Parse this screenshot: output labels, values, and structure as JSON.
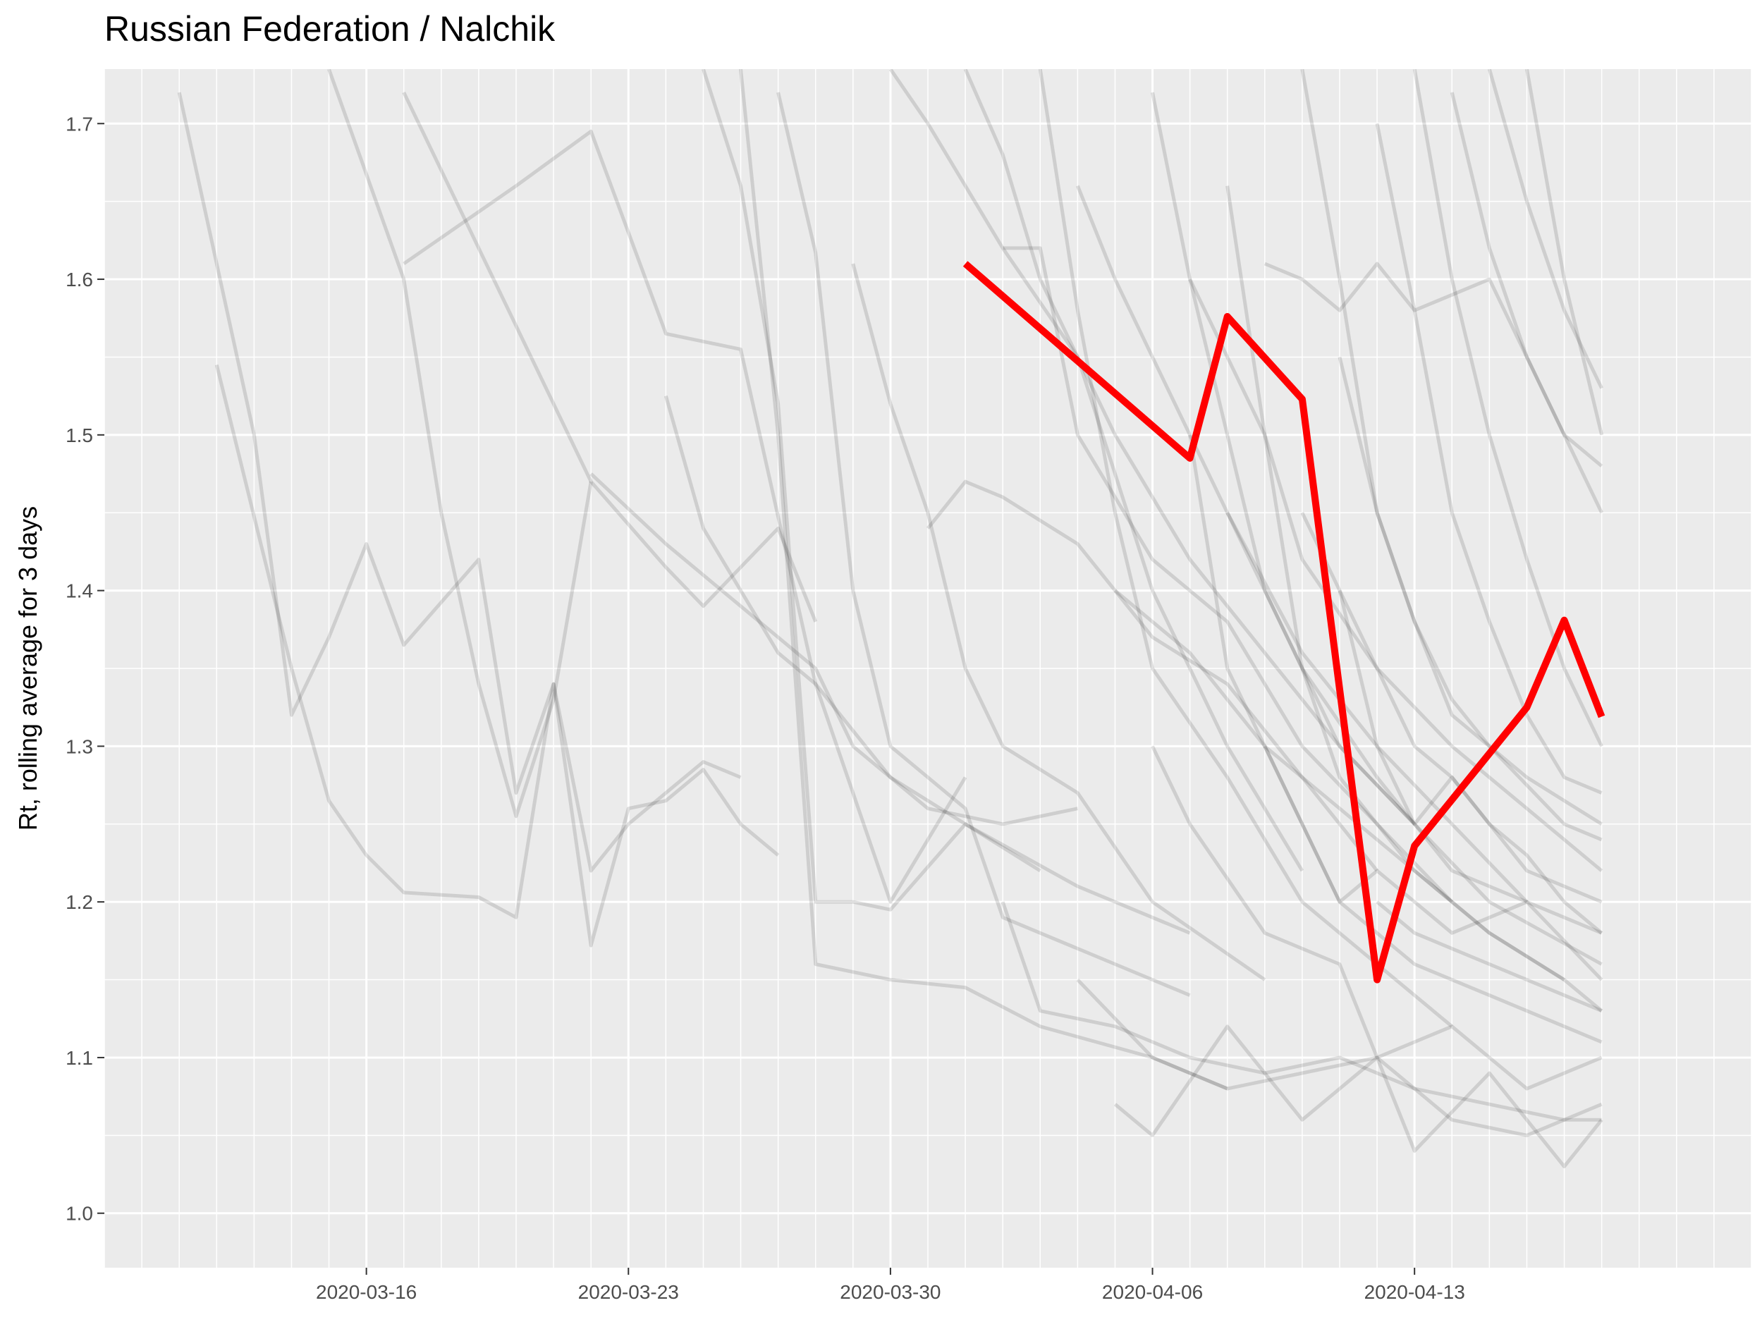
{
  "chart_data": {
    "type": "line",
    "title": "Russian Federation / Nalchik",
    "xlabel": "",
    "ylabel": "Rt, rolling average for 3 days",
    "xlim": [
      "2020-03-09",
      "2020-04-22"
    ],
    "ylim": [
      0.965,
      1.735
    ],
    "x_ticks": [
      "2020-03-16",
      "2020-03-23",
      "2020-03-30",
      "2020-04-06",
      "2020-04-13"
    ],
    "y_ticks": [
      "1.0",
      "1.1",
      "1.2",
      "1.3",
      "1.4",
      "1.5",
      "1.6",
      "1.7"
    ],
    "grid": true,
    "highlight_color": "#ff0000",
    "background_color": "#ebebeb",
    "highlight_series": {
      "name": "Nalchik",
      "x": [
        "2020-04-01",
        "2020-04-07",
        "2020-04-08",
        "2020-04-10",
        "2020-04-12",
        "2020-04-13",
        "2020-04-16",
        "2020-04-17",
        "2020-04-18"
      ],
      "y": [
        1.61,
        1.485,
        1.576,
        1.523,
        1.15,
        1.236,
        1.325,
        1.381,
        1.319
      ]
    },
    "background_series": [
      {
        "x": [
          "2020-03-11",
          "2020-03-13",
          "2020-03-14",
          "2020-03-15",
          "2020-03-16",
          "2020-03-17",
          "2020-03-19",
          "2020-03-20",
          "2020-03-21",
          "2020-03-22",
          "2020-03-23",
          "2020-03-24",
          "2020-03-25",
          "2020-03-26"
        ],
        "y": [
          1.72,
          1.5,
          1.32,
          1.37,
          1.43,
          1.365,
          1.42,
          1.27,
          1.34,
          1.22,
          1.25,
          1.27,
          1.29,
          1.28
        ]
      },
      {
        "x": [
          "2020-03-12",
          "2020-03-14",
          "2020-03-15",
          "2020-03-16",
          "2020-03-17",
          "2020-03-19",
          "2020-03-20",
          "2020-03-21",
          "2020-03-22",
          "2020-03-23",
          "2020-03-24",
          "2020-03-25",
          "2020-03-26",
          "2020-03-27"
        ],
        "y": [
          1.545,
          1.35,
          1.265,
          1.23,
          1.206,
          1.203,
          1.19,
          1.34,
          1.172,
          1.26,
          1.265,
          1.285,
          1.25,
          1.23
        ]
      },
      {
        "x": [
          "2020-03-15",
          "2020-03-17",
          "2020-03-18",
          "2020-03-19",
          "2020-03-20",
          "2020-03-21",
          "2020-03-22"
        ],
        "y": [
          1.735,
          1.6,
          1.45,
          1.34,
          1.255,
          1.33,
          1.47
        ]
      },
      {
        "x": [
          "2020-03-17",
          "2020-03-19",
          "2020-03-21",
          "2020-03-22",
          "2020-03-24",
          "2020-03-25",
          "2020-03-27",
          "2020-03-28"
        ],
        "y": [
          1.72,
          1.62,
          1.52,
          1.47,
          1.415,
          1.39,
          1.44,
          1.38
        ]
      },
      {
        "x": [
          "2020-03-17",
          "2020-03-20",
          "2020-03-22",
          "2020-03-24",
          "2020-03-26",
          "2020-03-28",
          "2020-03-30",
          "2020-04-01"
        ],
        "y": [
          1.61,
          1.66,
          1.695,
          1.565,
          1.555,
          1.34,
          1.2,
          1.28
        ]
      },
      {
        "x": [
          "2020-03-22",
          "2020-03-24",
          "2020-03-26",
          "2020-03-28",
          "2020-03-29",
          "2020-03-31",
          "2020-04-02",
          "2020-04-04"
        ],
        "y": [
          1.475,
          1.43,
          1.39,
          1.35,
          1.3,
          1.26,
          1.25,
          1.26
        ]
      },
      {
        "x": [
          "2020-03-24",
          "2020-03-25",
          "2020-03-27",
          "2020-03-28",
          "2020-03-30",
          "2020-04-01",
          "2020-04-04",
          "2020-04-07"
        ],
        "y": [
          1.525,
          1.44,
          1.36,
          1.34,
          1.28,
          1.25,
          1.21,
          1.18
        ]
      },
      {
        "x": [
          "2020-03-25",
          "2020-03-26",
          "2020-03-27",
          "2020-03-28",
          "2020-03-29",
          "2020-03-30",
          "2020-04-01",
          "2020-04-03"
        ],
        "y": [
          1.735,
          1.66,
          1.52,
          1.2,
          1.2,
          1.195,
          1.25,
          1.22
        ]
      },
      {
        "x": [
          "2020-03-26",
          "2020-03-27",
          "2020-03-28",
          "2020-03-30",
          "2020-04-01",
          "2020-04-03",
          "2020-04-06",
          "2020-04-08"
        ],
        "y": [
          1.735,
          1.5,
          1.16,
          1.15,
          1.145,
          1.12,
          1.1,
          1.08
        ]
      },
      {
        "x": [
          "2020-03-27",
          "2020-03-28",
          "2020-03-29",
          "2020-03-30",
          "2020-04-01",
          "2020-04-02",
          "2020-04-05",
          "2020-04-07"
        ],
        "y": [
          1.72,
          1.617,
          1.4,
          1.3,
          1.26,
          1.19,
          1.16,
          1.14
        ]
      },
      {
        "x": [
          "2020-03-29",
          "2020-03-30",
          "2020-03-31",
          "2020-04-01",
          "2020-04-02",
          "2020-04-04",
          "2020-04-06",
          "2020-04-09"
        ],
        "y": [
          1.61,
          1.52,
          1.45,
          1.35,
          1.3,
          1.27,
          1.2,
          1.15
        ]
      },
      {
        "x": [
          "2020-03-30",
          "2020-03-31",
          "2020-04-01",
          "2020-04-02",
          "2020-04-04",
          "2020-04-06",
          "2020-04-08",
          "2020-04-10"
        ],
        "y": [
          1.735,
          1.7,
          1.66,
          1.62,
          1.55,
          1.4,
          1.3,
          1.22
        ]
      },
      {
        "x": [
          "2020-03-31",
          "2020-04-01",
          "2020-04-02",
          "2020-04-04",
          "2020-04-06",
          "2020-04-08",
          "2020-04-10",
          "2020-04-12"
        ],
        "y": [
          1.44,
          1.47,
          1.46,
          1.43,
          1.37,
          1.34,
          1.28,
          1.22
        ]
      },
      {
        "x": [
          "2020-04-01",
          "2020-04-02",
          "2020-04-03",
          "2020-04-05",
          "2020-04-07",
          "2020-04-09",
          "2020-04-11",
          "2020-04-13"
        ],
        "y": [
          1.735,
          1.68,
          1.6,
          1.5,
          1.42,
          1.36,
          1.3,
          1.25
        ]
      },
      {
        "x": [
          "2020-04-02",
          "2020-04-03",
          "2020-04-04",
          "2020-04-06",
          "2020-04-08",
          "2020-04-10",
          "2020-04-12",
          "2020-04-14"
        ],
        "y": [
          1.62,
          1.62,
          1.5,
          1.42,
          1.38,
          1.3,
          1.25,
          1.2
        ]
      },
      {
        "x": [
          "2020-04-03",
          "2020-04-04",
          "2020-04-05",
          "2020-04-06",
          "2020-04-08",
          "2020-04-10",
          "2020-04-12",
          "2020-04-14"
        ],
        "y": [
          1.735,
          1.58,
          1.45,
          1.35,
          1.28,
          1.2,
          1.16,
          1.12
        ]
      },
      {
        "x": [
          "2020-04-04",
          "2020-04-05",
          "2020-04-06",
          "2020-04-08",
          "2020-04-10",
          "2020-04-12",
          "2020-04-14",
          "2020-04-16"
        ],
        "y": [
          1.66,
          1.6,
          1.55,
          1.45,
          1.36,
          1.3,
          1.25,
          1.2
        ]
      },
      {
        "x": [
          "2020-04-05",
          "2020-04-06",
          "2020-04-07",
          "2020-04-09",
          "2020-04-11",
          "2020-04-13",
          "2020-04-15",
          "2020-04-17"
        ],
        "y": [
          1.4,
          1.38,
          1.36,
          1.3,
          1.26,
          1.22,
          1.18,
          1.15
        ]
      },
      {
        "x": [
          "2020-04-06",
          "2020-04-07",
          "2020-04-08",
          "2020-04-09",
          "2020-04-11",
          "2020-04-13",
          "2020-04-15",
          "2020-04-18"
        ],
        "y": [
          1.72,
          1.6,
          1.5,
          1.4,
          1.3,
          1.25,
          1.2,
          1.16
        ]
      },
      {
        "x": [
          "2020-04-07",
          "2020-04-08",
          "2020-04-09",
          "2020-04-10",
          "2020-04-12",
          "2020-04-14",
          "2020-04-16",
          "2020-04-18"
        ],
        "y": [
          1.6,
          1.55,
          1.5,
          1.42,
          1.35,
          1.3,
          1.26,
          1.22
        ]
      },
      {
        "x": [
          "2020-04-08",
          "2020-04-09",
          "2020-04-10",
          "2020-04-11",
          "2020-04-13",
          "2020-04-15",
          "2020-04-17",
          "2020-04-18"
        ],
        "y": [
          1.66,
          1.5,
          1.35,
          1.28,
          1.22,
          1.18,
          1.15,
          1.13
        ]
      },
      {
        "x": [
          "2020-04-09",
          "2020-04-10",
          "2020-04-11",
          "2020-04-12",
          "2020-04-13",
          "2020-04-15",
          "2020-04-17",
          "2020-04-18"
        ],
        "y": [
          1.61,
          1.6,
          1.58,
          1.61,
          1.58,
          1.6,
          1.5,
          1.45
        ]
      },
      {
        "x": [
          "2020-04-10",
          "2020-04-11",
          "2020-04-12",
          "2020-04-13",
          "2020-04-14",
          "2020-04-15",
          "2020-04-16",
          "2020-04-18"
        ],
        "y": [
          1.735,
          1.6,
          1.45,
          1.38,
          1.33,
          1.3,
          1.28,
          1.25
        ]
      },
      {
        "x": [
          "2020-04-11",
          "2020-04-12",
          "2020-04-13",
          "2020-04-14",
          "2020-04-15",
          "2020-04-16",
          "2020-04-17",
          "2020-04-18"
        ],
        "y": [
          1.4,
          1.35,
          1.3,
          1.28,
          1.25,
          1.23,
          1.2,
          1.18
        ]
      },
      {
        "x": [
          "2020-04-12",
          "2020-04-13",
          "2020-04-14",
          "2020-04-15",
          "2020-04-16",
          "2020-04-17",
          "2020-04-18"
        ],
        "y": [
          1.2,
          1.18,
          1.17,
          1.16,
          1.15,
          1.14,
          1.13
        ]
      },
      {
        "x": [
          "2020-04-02",
          "2020-04-03",
          "2020-04-05",
          "2020-04-07",
          "2020-04-09",
          "2020-04-11",
          "2020-04-13",
          "2020-04-15",
          "2020-04-17",
          "2020-04-18"
        ],
        "y": [
          1.2,
          1.13,
          1.12,
          1.1,
          1.09,
          1.1,
          1.08,
          1.07,
          1.06,
          1.06
        ]
      },
      {
        "x": [
          "2020-04-04",
          "2020-04-06",
          "2020-04-08",
          "2020-04-10",
          "2020-04-12",
          "2020-04-14",
          "2020-04-16",
          "2020-04-18"
        ],
        "y": [
          1.15,
          1.1,
          1.08,
          1.09,
          1.1,
          1.06,
          1.05,
          1.07
        ]
      },
      {
        "x": [
          "2020-04-05",
          "2020-04-06",
          "2020-04-08",
          "2020-04-10",
          "2020-04-12",
          "2020-04-13",
          "2020-04-15",
          "2020-04-17",
          "2020-04-18"
        ],
        "y": [
          1.07,
          1.05,
          1.12,
          1.06,
          1.1,
          1.04,
          1.09,
          1.03,
          1.06
        ]
      },
      {
        "x": [
          "2020-04-06",
          "2020-04-07",
          "2020-04-09",
          "2020-04-11",
          "2020-04-12",
          "2020-04-14",
          "2020-04-16",
          "2020-04-18"
        ],
        "y": [
          1.3,
          1.25,
          1.18,
          1.16,
          1.1,
          1.12,
          1.08,
          1.1
        ]
      },
      {
        "x": [
          "2020-04-07",
          "2020-04-08",
          "2020-04-10",
          "2020-04-11",
          "2020-04-13",
          "2020-04-15",
          "2020-04-17",
          "2020-04-18"
        ],
        "y": [
          1.5,
          1.35,
          1.25,
          1.2,
          1.16,
          1.14,
          1.12,
          1.11
        ]
      },
      {
        "x": [
          "2020-04-08",
          "2020-04-09",
          "2020-04-10",
          "2020-04-12",
          "2020-04-14",
          "2020-04-16",
          "2020-04-18"
        ],
        "y": [
          1.45,
          1.4,
          1.35,
          1.28,
          1.22,
          1.2,
          1.18
        ]
      },
      {
        "x": [
          "2020-04-09",
          "2020-04-10",
          "2020-04-11",
          "2020-04-12",
          "2020-04-14",
          "2020-04-16",
          "2020-04-18"
        ],
        "y": [
          1.3,
          1.25,
          1.2,
          1.22,
          1.18,
          1.2,
          1.15
        ]
      },
      {
        "x": [
          "2020-04-10",
          "2020-04-11",
          "2020-04-12",
          "2020-04-13",
          "2020-04-14",
          "2020-04-16",
          "2020-04-18"
        ],
        "y": [
          1.45,
          1.4,
          1.3,
          1.25,
          1.28,
          1.22,
          1.2
        ]
      },
      {
        "x": [
          "2020-04-11",
          "2020-04-12",
          "2020-04-13",
          "2020-04-14",
          "2020-04-15",
          "2020-04-17",
          "2020-04-18"
        ],
        "y": [
          1.55,
          1.45,
          1.38,
          1.32,
          1.3,
          1.25,
          1.24
        ]
      },
      {
        "x": [
          "2020-04-12",
          "2020-04-13",
          "2020-04-14",
          "2020-04-15",
          "2020-04-16",
          "2020-04-17",
          "2020-04-18"
        ],
        "y": [
          1.7,
          1.58,
          1.45,
          1.38,
          1.32,
          1.28,
          1.27
        ]
      },
      {
        "x": [
          "2020-04-13",
          "2020-04-14",
          "2020-04-15",
          "2020-04-16",
          "2020-04-17",
          "2020-04-18"
        ],
        "y": [
          1.735,
          1.6,
          1.5,
          1.42,
          1.35,
          1.3
        ]
      },
      {
        "x": [
          "2020-04-14",
          "2020-04-15",
          "2020-04-16",
          "2020-04-17",
          "2020-04-18"
        ],
        "y": [
          1.72,
          1.62,
          1.55,
          1.5,
          1.48
        ]
      },
      {
        "x": [
          "2020-04-15",
          "2020-04-16",
          "2020-04-17",
          "2020-04-18"
        ],
        "y": [
          1.735,
          1.65,
          1.58,
          1.53
        ]
      },
      {
        "x": [
          "2020-04-16",
          "2020-04-17",
          "2020-04-18"
        ],
        "y": [
          1.735,
          1.6,
          1.5
        ]
      }
    ]
  }
}
